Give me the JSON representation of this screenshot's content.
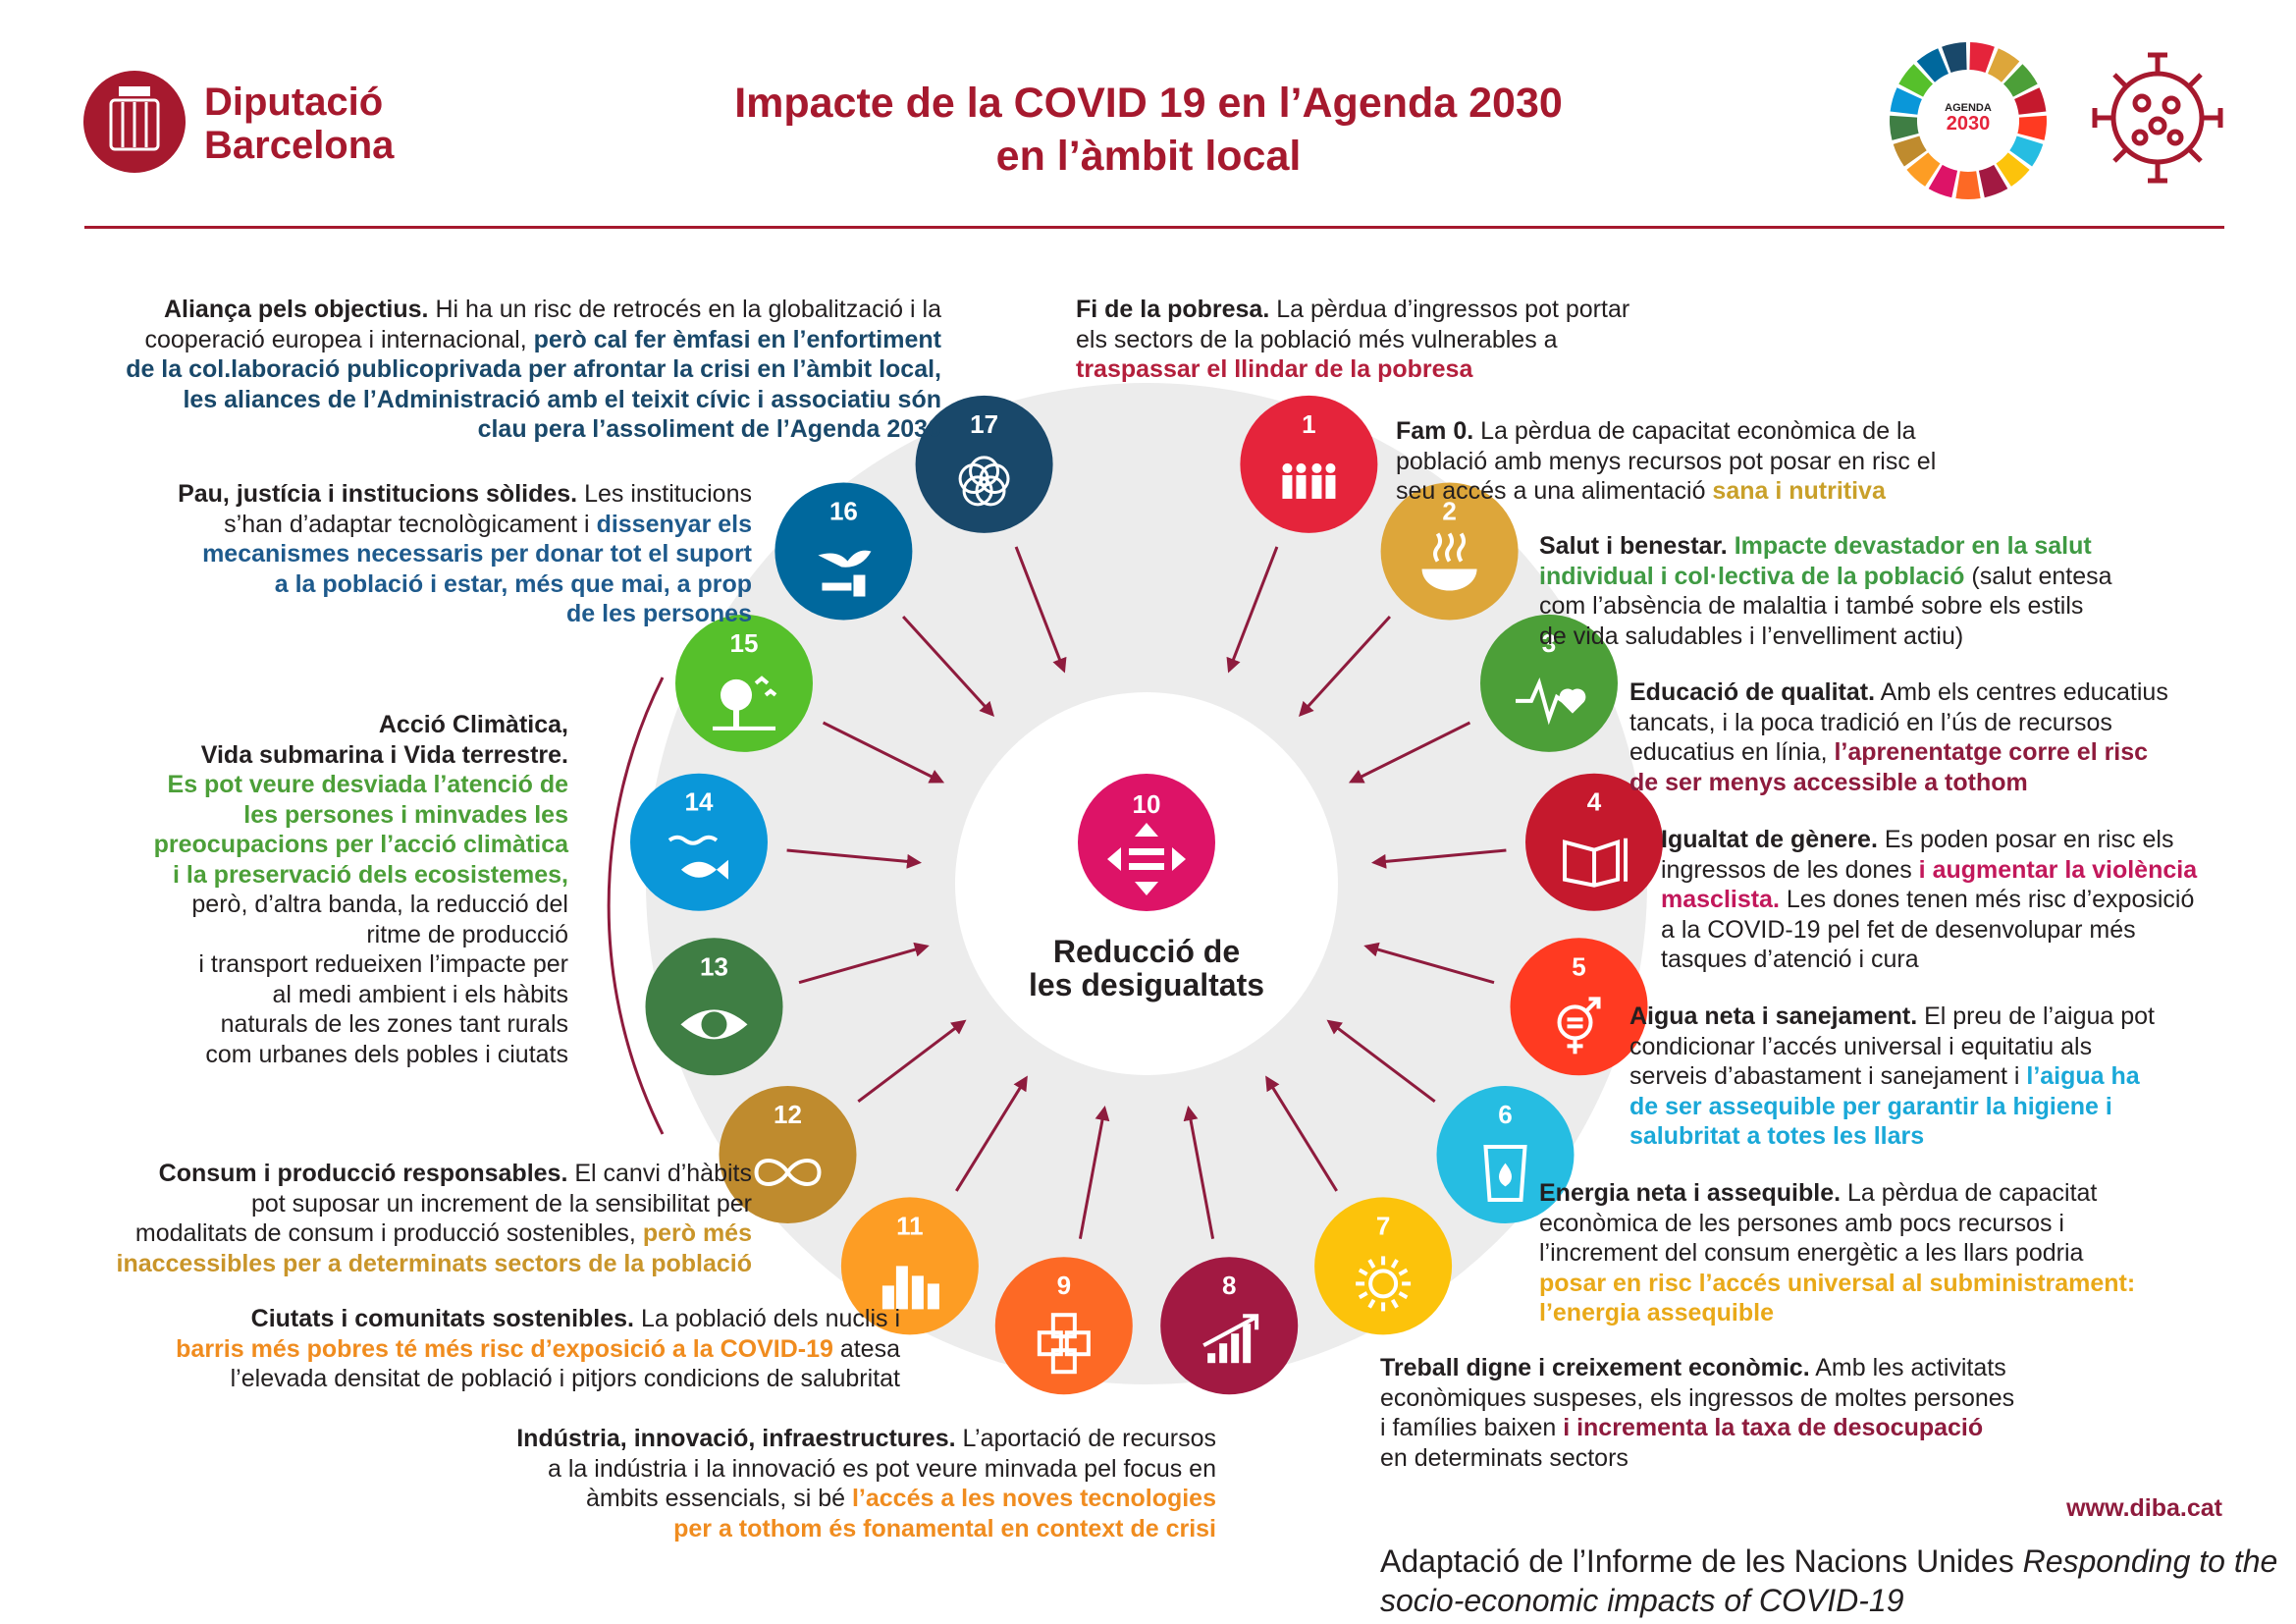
{
  "header": {
    "logo_line1": "Diputació",
    "logo_line2": "Barcelona",
    "title_line1": "Impacte de la COVID 19 en l’Agenda 2030",
    "title_line2": "en l’àmbit local",
    "agenda_badge_line1": "AGENDA",
    "agenda_badge_line2": "2030"
  },
  "center": {
    "number": "10",
    "label_line1": "Reducció de",
    "label_line2": "les desigualtats",
    "color": "#dd1367"
  },
  "goals": [
    {
      "n": "1",
      "color": "#e5243b",
      "icon": "family-icon"
    },
    {
      "n": "2",
      "color": "#dda63a",
      "icon": "bowl-icon"
    },
    {
      "n": "3",
      "color": "#4c9f38",
      "icon": "heartbeat-icon"
    },
    {
      "n": "4",
      "color": "#c5192d",
      "icon": "book-icon"
    },
    {
      "n": "5",
      "color": "#ff3a21",
      "icon": "gender-icon"
    },
    {
      "n": "6",
      "color": "#26bde2",
      "icon": "water-glass-icon"
    },
    {
      "n": "7",
      "color": "#fcc30b",
      "icon": "sun-power-icon"
    },
    {
      "n": "8",
      "color": "#a21942",
      "icon": "growth-chart-icon"
    },
    {
      "n": "9",
      "color": "#fd6925",
      "icon": "cubes-icon"
    },
    {
      "n": "11",
      "color": "#fd9d24",
      "icon": "buildings-icon"
    },
    {
      "n": "12",
      "color": "#bf8b2e",
      "icon": "infinity-icon"
    },
    {
      "n": "13",
      "color": "#3f7e44",
      "icon": "eye-globe-icon"
    },
    {
      "n": "14",
      "color": "#0a97d9",
      "icon": "fish-icon"
    },
    {
      "n": "15",
      "color": "#56c02b",
      "icon": "tree-icon"
    },
    {
      "n": "16",
      "color": "#00689d",
      "icon": "dove-icon"
    },
    {
      "n": "17",
      "color": "#19486a",
      "icon": "rings-icon"
    }
  ],
  "texts": {
    "t17": {
      "a": "Aliança pels objectius.",
      "b": " Hi ha un risc de retrocés en la globalització i la",
      "c": "cooperació europea i internacional, ",
      "d": "però cal fer èmfasi en l’enfortiment",
      "e": "de la col.laboració publicoprivada per afrontar la crisi en l’àmbit local,",
      "f": "les aliances de l’Administració amb el teixit cívic i associatiu són",
      "g": "clau pera l’assoliment de l’Agenda 2030"
    },
    "t16": {
      "a": "Pau, justícia i institucions sòlides.",
      "b": " Les institucions",
      "c": "s’han d’adaptar tecnològicament i ",
      "d": "dissenyar els",
      "e": "mecanismes necessaris per donar tot el suport",
      "f": "a la població i estar, més que mai, a prop",
      "g": "de les persones"
    },
    "tclima": {
      "a": "Acció Climàtica,",
      "b": "Vida submarina i Vida terrestre.",
      "c": "Es pot veure desviada l’atenció de",
      "d": "les persones i minvades les",
      "e": "preocupacions per l’acció climàtica",
      "f": "i la preservació dels ecosistemes,",
      "g": "però, d’altra banda, la reducció del",
      "h": "ritme de producció",
      "i": "i transport redueixen l’impacte per",
      "j": "al medi ambient i els hàbits",
      "k": "naturals de les zones tant rurals",
      "l": "com urbanes dels pobles i ciutats"
    },
    "t12": {
      "a": "Consum i producció responsables.",
      "b": " El canvi d’hàbits",
      "c": "pot suposar un increment de la sensibilitat per",
      "d": "modalitats de consum i producció sostenibles, ",
      "e": "però més",
      "f": "inaccessibles per a determinats sectors de la població"
    },
    "t11": {
      "a": "Ciutats i comunitats sostenibles.",
      "b": " La població dels nuclis i",
      "c": "barris més pobres té més risc d’exposició a la COVID-19",
      "d": " atesa",
      "e": "l’elevada densitat de població i pitjors condicions de salubritat"
    },
    "t9": {
      "a": "Indústria, innovació, infraestructures.",
      "b": " L’aportació de recursos",
      "c": "a la indústria i la innovació es pot veure minvada pel focus en",
      "d": "àmbits essencials, si bé ",
      "e": "l’accés a les noves tecnologies",
      "f": "per a tothom és fonamental en context de crisi"
    },
    "t1": {
      "a": "Fi de la pobresa.",
      "b": " La pèrdua d’ingressos pot portar",
      "c": "els sectors de la població més vulnerables a",
      "d": "traspassar el llindar de la pobresa"
    },
    "t2": {
      "a": "Fam 0.",
      "b": " La pèrdua de capacitat econòmica de la",
      "c": "població amb menys recursos pot posar en risc el",
      "d": "seu accés a una alimentació ",
      "e": "sana i nutritiva"
    },
    "t3": {
      "a": "Salut i benestar.",
      "b": " Impacte devastador en la salut",
      "c": "individual i col·lectiva de la població",
      "d": " (salut entesa",
      "e": "com l’absència de malaltia i també sobre els estils",
      "f": "de vida saludables i l’envelliment actiu)"
    },
    "t4": {
      "a": "Educació de qualitat.",
      "b": " Amb els centres educatius",
      "c": "tancats, i la poca tradició en l’ús de recursos",
      "d": "educatius en línia, ",
      "e": "l’aprenentatge corre el risc",
      "f": "de ser menys accessible a tothom"
    },
    "t5": {
      "a": "Igualtat de gènere.",
      "b": " Es poden posar en risc els",
      "c": "ingressos de les dones ",
      "d": "i augmentar la violència",
      "e": "masclista.",
      "f": " Les dones tenen més risc d’exposició",
      "g": "a la COVID-19 pel fet de desenvolupar més",
      "h": "tasques d’atenció i cura"
    },
    "t6": {
      "a": "Aigua neta i sanejament.",
      "b": " El preu de l’aigua pot",
      "c": "condicionar l’accés universal i equitatiu als",
      "d": "serveis d’abastament i sanejament i ",
      "e": "l’aigua ha",
      "f": "de ser assequible per garantir la higiene i",
      "g": "salubritat a totes les llars"
    },
    "t7": {
      "a": "Energia neta i assequible.",
      "b": " La pèrdua de capacitat",
      "c": "econòmica de les persones amb pocs recursos i",
      "d": "l’increment del consum energètic a les llars podria",
      "e": "posar en risc l’accés universal al subministrament:",
      "f": "l’energia assequible"
    },
    "t8": {
      "a": "Treball digne i creixement econòmic.",
      "b": " Amb les activitats",
      "c": "econòmiques suspeses, els ingressos de moltes persones",
      "d": "i famílies baixen ",
      "e": "i incrementa la taxa de desocupació",
      "f": "en determinats sectors"
    }
  },
  "footer": {
    "site": "www.diba.cat",
    "credit_plain": "Adaptació de l’Informe de les Nacions Unides ",
    "credit_italic1": "Responding to the",
    "credit_italic2": "socio-economic impacts of COVID-19"
  },
  "colors": {
    "brand": "#a6192e",
    "arrow": "#8e1b3d",
    "ring": "#ebebeb"
  }
}
